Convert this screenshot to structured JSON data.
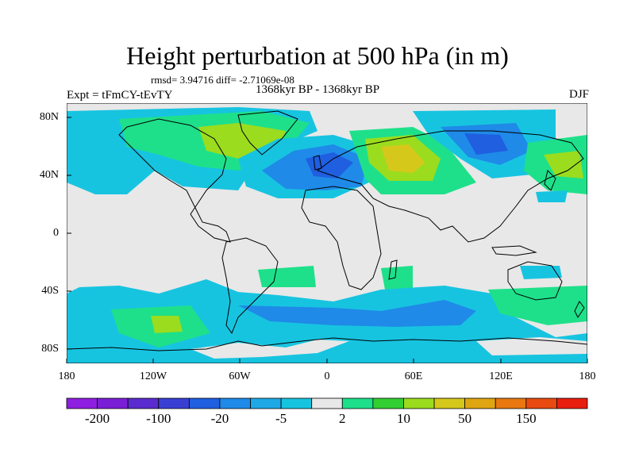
{
  "title": "Height perturbation at 500 hPa (in m)",
  "stats": "rmsd= 3.94716 diff= -2.71069e-08",
  "experiment": "Expt = tFmCY-tEvTY",
  "period": "1368kyr BP - 1368kyr BP",
  "season": "DJF",
  "axes": {
    "lat_ticks": [
      "80N",
      "40N",
      "0",
      "40S",
      "80S"
    ],
    "lon_ticks": [
      "180",
      "120W",
      "60W",
      "0",
      "60E",
      "120E",
      "180"
    ]
  },
  "colorbar": {
    "colors": [
      "#8f1fe0",
      "#7a1fd6",
      "#5a2ccf",
      "#3a3fd4",
      "#1f5fe0",
      "#1f8ae8",
      "#1ea8e6",
      "#17c4e0",
      "#e8e8e8",
      "#1ee08a",
      "#32cf32",
      "#9bdc1e",
      "#d6c81a",
      "#e0a512",
      "#e8780f",
      "#e84a0f",
      "#e81e0f"
    ],
    "labels": [
      "-200",
      "-100",
      "-20",
      "-5",
      "2",
      "10",
      "50",
      "150"
    ]
  }
}
